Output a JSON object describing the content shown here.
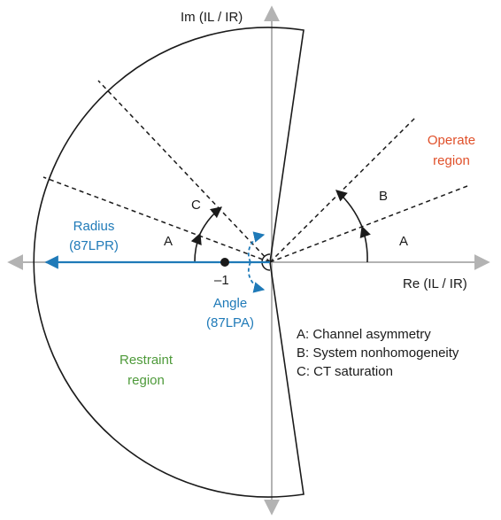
{
  "axes": {
    "imaginary_label": "Im (IL / IR)",
    "real_label": "Re (IL / IR)"
  },
  "point": {
    "label": "–1"
  },
  "radius": {
    "line1": "Radius",
    "line2": "(87LPR)"
  },
  "angle": {
    "line1": "Angle",
    "line2": "(87LPA)"
  },
  "regions": {
    "operate": {
      "line1": "Operate",
      "line2": "region"
    },
    "restraint": {
      "line1": "Restraint",
      "line2": "region"
    }
  },
  "sector_labels": {
    "left_a": "A",
    "left_c": "C",
    "right_b": "B",
    "right_a": "A"
  },
  "legend": [
    "A: Channel asymmetry",
    "B: System nonhomogeneity",
    "C: CT saturation"
  ],
  "colors": {
    "axis": "#b3b3b3",
    "outline": "#1a1a1a",
    "blue": "#1f7ab8",
    "orange": "#e0502a",
    "green": "#4e9a3a"
  }
}
